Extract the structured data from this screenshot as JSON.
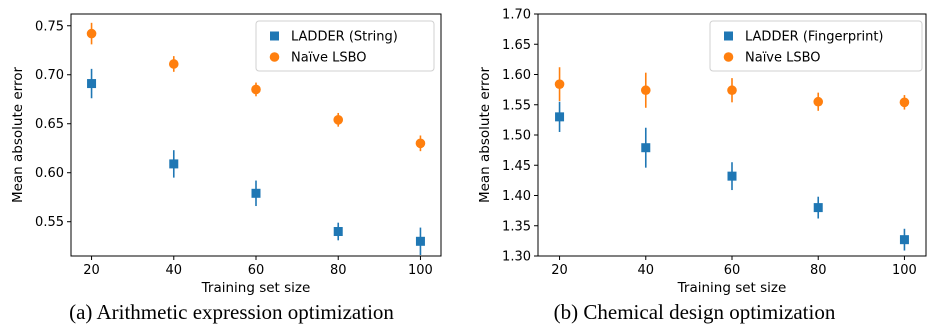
{
  "chart_data": [
    {
      "type": "scatter",
      "title": "",
      "caption": "(a) Arithmetic expression optimization",
      "xlabel": "Training set size",
      "ylabel": "Mean absolute error",
      "xlim": [
        15,
        105
      ],
      "ylim": [
        0.515,
        0.762
      ],
      "xticks": [
        20,
        40,
        60,
        80,
        100
      ],
      "yticks": [
        0.55,
        0.6,
        0.65,
        0.7,
        0.75
      ],
      "ytick_labels": [
        "0.55",
        "0.60",
        "0.65",
        "0.70",
        "0.75"
      ],
      "grid": false,
      "legend_position": "top-right",
      "series": [
        {
          "name": "LADDER (String)",
          "color": "#1f77b4",
          "marker": "square",
          "x": [
            20,
            40,
            60,
            80,
            100
          ],
          "y": [
            0.691,
            0.609,
            0.579,
            0.54,
            0.53
          ],
          "err": [
            0.015,
            0.014,
            0.013,
            0.009,
            0.014
          ]
        },
        {
          "name": "Naïve LSBO",
          "color": "#ff7f0e",
          "marker": "circle",
          "x": [
            20,
            40,
            60,
            80,
            100
          ],
          "y": [
            0.742,
            0.711,
            0.685,
            0.654,
            0.63
          ],
          "err": [
            0.011,
            0.008,
            0.007,
            0.007,
            0.008
          ]
        }
      ]
    },
    {
      "type": "scatter",
      "title": "",
      "caption": "(b) Chemical design optimization",
      "xlabel": "Training set size",
      "ylabel": "Mean absolute error",
      "xlim": [
        15,
        105
      ],
      "ylim": [
        1.3,
        1.7
      ],
      "xticks": [
        20,
        40,
        60,
        80,
        100
      ],
      "yticks": [
        1.3,
        1.35,
        1.4,
        1.45,
        1.5,
        1.55,
        1.6,
        1.65,
        1.7
      ],
      "ytick_labels": [
        "1.30",
        "1.35",
        "1.40",
        "1.45",
        "1.50",
        "1.55",
        "1.60",
        "1.65",
        "1.70"
      ],
      "grid": false,
      "legend_position": "top-right",
      "series": [
        {
          "name": "LADDER (Fingerprint)",
          "color": "#1f77b4",
          "marker": "square",
          "x": [
            20,
            40,
            60,
            80,
            100
          ],
          "y": [
            1.53,
            1.479,
            1.432,
            1.38,
            1.327
          ],
          "err": [
            0.025,
            0.033,
            0.023,
            0.018,
            0.018
          ]
        },
        {
          "name": "Naïve LSBO",
          "color": "#ff7f0e",
          "marker": "circle",
          "x": [
            20,
            40,
            60,
            80,
            100
          ],
          "y": [
            1.584,
            1.574,
            1.574,
            1.555,
            1.554
          ],
          "err": [
            0.028,
            0.029,
            0.02,
            0.015,
            0.012
          ]
        }
      ]
    }
  ]
}
